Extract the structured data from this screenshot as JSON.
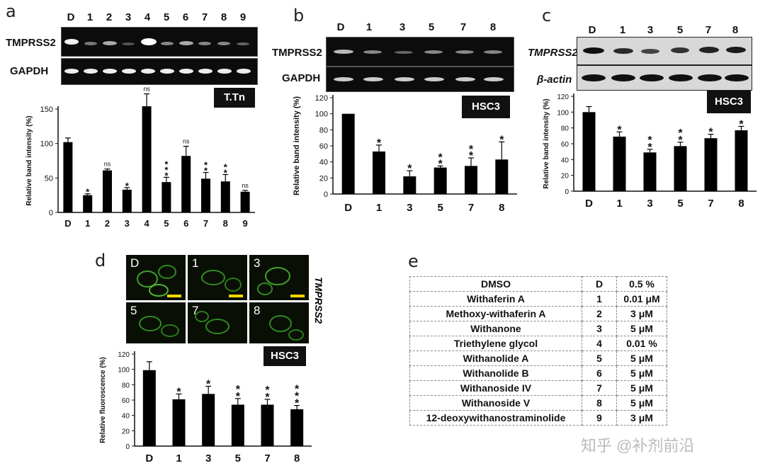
{
  "panel_letters": {
    "a": "a",
    "b": "b",
    "c": "c",
    "d": "d",
    "e": "e"
  },
  "gels": {
    "a": {
      "rows": [
        "TMPRSS2",
        "GAPDH"
      ],
      "lanes": [
        "D",
        "1",
        "2",
        "3",
        "4",
        "5",
        "6",
        "7",
        "8",
        "9"
      ]
    },
    "b": {
      "rows": [
        "TMPRSS2",
        "GAPDH"
      ],
      "lanes": [
        "D",
        "1",
        "3",
        "5",
        "7",
        "8"
      ]
    },
    "c": {
      "rows": [
        "TMPRSS2",
        "β-actin"
      ],
      "lanes": [
        "D",
        "1",
        "3",
        "5",
        "7",
        "8"
      ]
    }
  },
  "micrograph": {
    "label": "TMPRSS2",
    "cells": [
      "D",
      "1",
      "3",
      "5",
      "7",
      "8"
    ]
  },
  "chart_data": [
    {
      "panel": "a",
      "type": "bar",
      "tag": "T.Tn",
      "categories": [
        "D",
        "1",
        "2",
        "3",
        "4",
        "5",
        "6",
        "7",
        "8",
        "9"
      ],
      "values": [
        102,
        25,
        61,
        33,
        154,
        44,
        82,
        49,
        45,
        30
      ],
      "errors": [
        6,
        2,
        2,
        3,
        18,
        7,
        14,
        9,
        10,
        2
      ],
      "significance": [
        "",
        "*",
        "ns",
        "*",
        "ns",
        "***",
        "ns",
        "**",
        "**",
        "ns"
      ],
      "ylabel": "Relative band intensity (%)",
      "ylim": [
        0,
        150
      ],
      "yticks": [
        0,
        50,
        100,
        150
      ]
    },
    {
      "panel": "b",
      "type": "bar",
      "tag": "HSC3",
      "categories": [
        "D",
        "1",
        "3",
        "5",
        "7",
        "8"
      ],
      "values": [
        100,
        53,
        22,
        33,
        35,
        43
      ],
      "errors": [
        0,
        8,
        7,
        2,
        10,
        22
      ],
      "significance": [
        "",
        "*",
        "*",
        "**",
        "**",
        "*"
      ],
      "ylabel": "Relative band intensity (%)",
      "ylim": [
        0,
        120
      ],
      "yticks": [
        0,
        20,
        40,
        60,
        80,
        100,
        120
      ]
    },
    {
      "panel": "c",
      "type": "bar",
      "tag": "HSC3",
      "categories": [
        "D",
        "1",
        "3",
        "5",
        "7",
        "8"
      ],
      "values": [
        100,
        69,
        49,
        57,
        67,
        77
      ],
      "errors": [
        7,
        6,
        4,
        5,
        5,
        5
      ],
      "significance": [
        "",
        "*",
        "**",
        "**",
        "*",
        "*"
      ],
      "ylabel": "Relative band intensity (%)",
      "ylim": [
        0,
        120
      ],
      "yticks": [
        0,
        20,
        40,
        60,
        80,
        100,
        120
      ]
    },
    {
      "panel": "d",
      "type": "bar",
      "tag": "HSC3",
      "categories": [
        "D",
        "1",
        "3",
        "5",
        "7",
        "8"
      ],
      "values": [
        99,
        61,
        68,
        54,
        54,
        48
      ],
      "errors": [
        11,
        7,
        10,
        8,
        7,
        5
      ],
      "significance": [
        "",
        "*",
        "*",
        "**",
        "**",
        "***"
      ],
      "ylabel": "Relative fluoroscence (%)",
      "ylim": [
        0,
        120
      ],
      "yticks": [
        0,
        20,
        40,
        60,
        80,
        100,
        120
      ]
    }
  ],
  "compound_table": [
    [
      "DMSO",
      "D",
      "0.5 %"
    ],
    [
      "Withaferin A",
      "1",
      "0.01 μM"
    ],
    [
      "Methoxy-withaferin A",
      "2",
      "3 μM"
    ],
    [
      "Withanone",
      "3",
      "5 μM"
    ],
    [
      "Triethylene glycol",
      "4",
      "0.01 %"
    ],
    [
      "Withanolide A",
      "5",
      "5 μM"
    ],
    [
      "Withanolide B",
      "6",
      "5 μM"
    ],
    [
      "Withanoside IV",
      "7",
      "5 μM"
    ],
    [
      "Withanoside V",
      "8",
      "5 μM"
    ],
    [
      "12-deoxywithanostraminolide",
      "9",
      "3 μM"
    ]
  ],
  "watermark": "知乎 @补剂前沿"
}
